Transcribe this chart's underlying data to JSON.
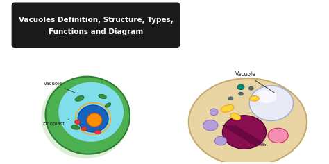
{
  "title_line1": "Vacuoles Definition, Structure, Types,",
  "title_line2": "Functions and Diagram",
  "title_bg": "#1a1a1a",
  "title_text_color": "#ffffff",
  "bg_color": "#ffffff",
  "vacuole_label_left": "Vacuole",
  "tonoplast_label": "Tonoplast",
  "vacuole_label_right": "Vacuole",
  "label_color": "#222222"
}
